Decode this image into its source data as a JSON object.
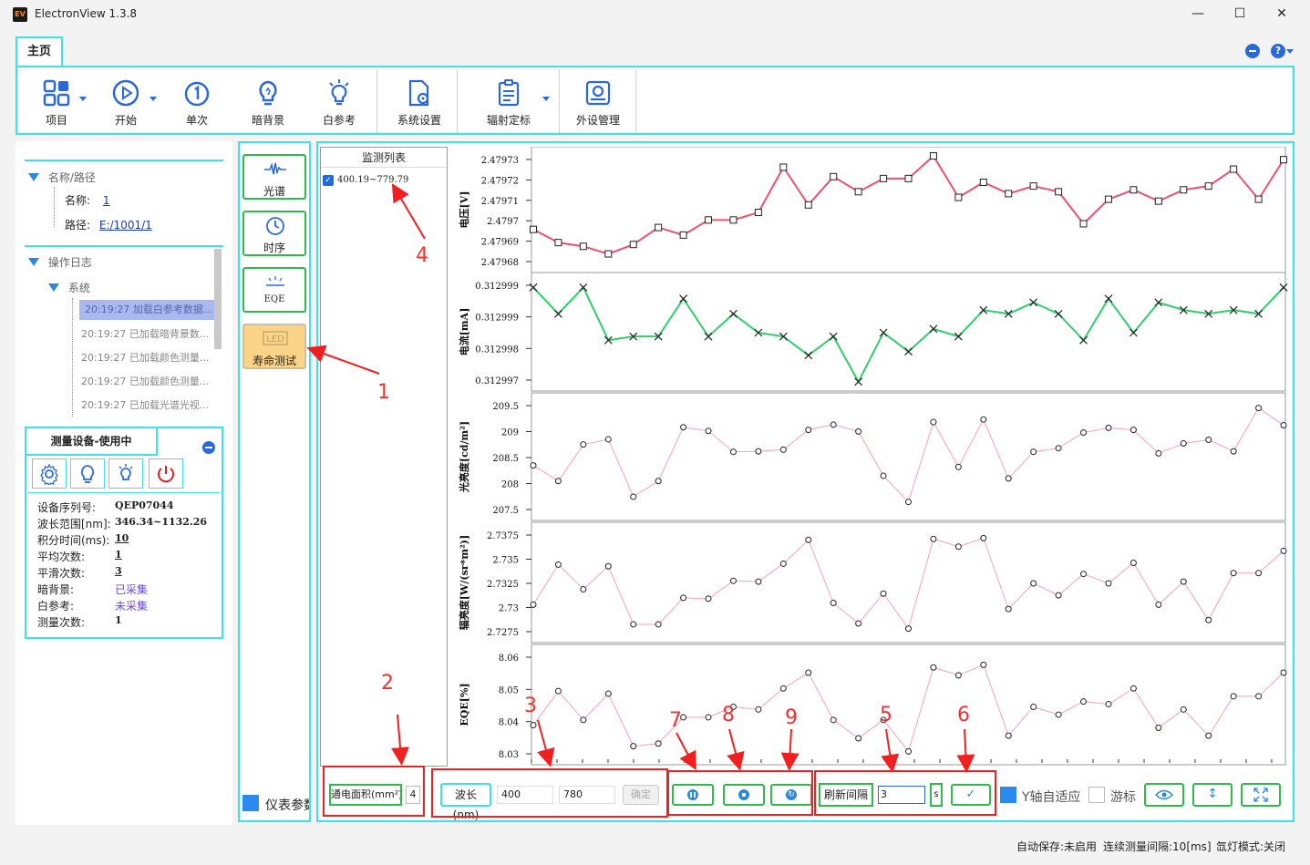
{
  "window": {
    "title": "ElectronView 1.3.8",
    "icon": "EV"
  },
  "ribbon": {
    "tab": "主页",
    "buttons": [
      {
        "label": "项目",
        "icon": "project-icon"
      },
      {
        "label": "开始",
        "icon": "play-icon"
      },
      {
        "label": "单次",
        "icon": "single-icon"
      },
      {
        "label": "暗背景",
        "icon": "bulb-dark-icon"
      },
      {
        "label": "白参考",
        "icon": "bulb-white-icon"
      },
      {
        "label": "系统设置",
        "icon": "settings-doc-icon"
      },
      {
        "label": "辐射定标",
        "icon": "calibration-icon"
      },
      {
        "label": "外设管理",
        "icon": "peripheral-icon"
      }
    ]
  },
  "tree1": {
    "header": "名称/路径",
    "name_label": "名称:",
    "name_value": "1",
    "path_label": "路径:",
    "path_value": "E:/1001/1"
  },
  "log": {
    "header": "操作日志",
    "group": "系统",
    "items": [
      "20:19:27 加载白参考数据...",
      "20:19:27 已加载暗背景数...",
      "20:19:27 已加载颜色测量...",
      "20:19:27 已加载颜色测量...",
      "20:19:27 已加载光谱光视..."
    ]
  },
  "device": {
    "title": "测量设备-使用中",
    "rows": [
      {
        "k": "设备序列号:",
        "v": "QEP07044"
      },
      {
        "k": "波长范围[nm]:",
        "v": "346.34~1132.26"
      },
      {
        "k": "积分时间(ms):",
        "v": "10"
      },
      {
        "k": "平均次数:",
        "v": "1"
      },
      {
        "k": "平滑次数:",
        "v": "3"
      },
      {
        "k": "暗背景:",
        "v": "已采集"
      },
      {
        "k": "白参考:",
        "v": "未采集"
      },
      {
        "k": "测量次数:",
        "v": "1"
      }
    ]
  },
  "modes": [
    "光谱",
    "时序",
    "EQE",
    "寿命测试"
  ],
  "meter_params": "仪表参数",
  "monitor": {
    "header": "监测列表",
    "item": "400.19~779.79"
  },
  "annotations": [
    "1",
    "2",
    "3",
    "4",
    "5",
    "6",
    "7",
    "8",
    "9"
  ],
  "bottom": {
    "area_label": "通电面积(mm²)",
    "area_value": "4",
    "wl_label": "波长(nm)",
    "wl_from": "400",
    "wl_to": "780",
    "confirm": "确定",
    "refresh_label": "刷新间隔",
    "refresh_value": "3",
    "refresh_unit": "s",
    "yauto": "Y轴自适应",
    "cursor": "游标"
  },
  "status": {
    "autosave": "自动保存:未启用",
    "interval": "连续测量间隔:10[ms]",
    "lamp": "氙灯模式:关闭"
  },
  "colors": {
    "cyan": "#3fe0e8",
    "green": "#2dbb4a",
    "red": "#f23030",
    "blue": "#2a8ad8"
  },
  "chart_data": [
    {
      "type": "line",
      "ylabel": "电压[V]",
      "yticks": [
        "2.47973",
        "2.47972",
        "2.47971",
        "2.4797",
        "2.47969",
        "2.47968"
      ],
      "ylim": [
        2.479675,
        2.479735
      ],
      "values": [
        2.479695,
        2.479688,
        2.479686,
        2.479682,
        2.479687,
        2.479696,
        2.479692,
        2.4797,
        2.4797,
        2.479704,
        2.479728,
        2.479708,
        2.479723,
        2.479715,
        2.479722,
        2.479722,
        2.479734,
        2.479712,
        2.47972,
        2.479714,
        2.479718,
        2.479715,
        2.479698,
        2.479711,
        2.479716,
        2.47971,
        2.479716,
        2.479718,
        2.479727,
        2.479711,
        2.479732
      ],
      "marker": "square",
      "color": "#f0506e"
    },
    {
      "type": "line",
      "ylabel": "电流[mA]",
      "yticks": [
        "0.312999",
        "0.312999",
        "0.312998",
        "0.312997"
      ],
      "ylim": [
        0.3129964,
        0.3129992
      ],
      "values": [
        0.312999,
        0.3129983,
        0.312999,
        0.3129976,
        0.3129977,
        0.3129977,
        0.3129987,
        0.3129977,
        0.3129983,
        0.3129978,
        0.3129977,
        0.3129972,
        0.3129977,
        0.3129965,
        0.3129978,
        0.3129973,
        0.3129979,
        0.3129977,
        0.3129984,
        0.3129983,
        0.3129986,
        0.3129983,
        0.3129976,
        0.3129987,
        0.3129978,
        0.3129986,
        0.3129984,
        0.3129983,
        0.3129984,
        0.3129983,
        0.312999
      ],
      "marker": "x",
      "color": "#2dcf6a"
    },
    {
      "type": "line",
      "ylabel": "光亮度[cd/m²]",
      "yticks": [
        "209.5",
        "209",
        "208.5",
        "208",
        "207.5"
      ],
      "ylim": [
        207.4,
        209.6
      ],
      "values": [
        208.35,
        208.05,
        208.75,
        208.85,
        207.75,
        208.05,
        209.08,
        209.01,
        208.61,
        208.62,
        208.65,
        209.03,
        209.13,
        209.0,
        208.15,
        207.65,
        209.18,
        208.32,
        209.23,
        208.1,
        208.61,
        208.68,
        208.98,
        209.07,
        209.03,
        208.58,
        208.77,
        208.84,
        208.62,
        209.45,
        209.12
      ],
      "marker": "circle",
      "color": "#f6a2b4"
    },
    {
      "type": "line",
      "ylabel": "辐亮度[W/(sr*m²)]",
      "yticks": [
        "2.7375",
        "2.735",
        "2.7325",
        "2.73",
        "2.7275"
      ],
      "ylim": [
        2.7262,
        2.7388
      ],
      "values": [
        2.73,
        2.7347,
        2.7318,
        2.7345,
        2.7277,
        2.7277,
        2.7308,
        2.7307,
        2.7328,
        2.7327,
        2.7348,
        2.7376,
        2.7302,
        2.7278,
        2.7313,
        2.7272,
        2.7377,
        2.7368,
        2.7378,
        2.7295,
        2.7325,
        2.7311,
        2.7336,
        2.7325,
        2.7349,
        2.73,
        2.7327,
        2.7282,
        2.7337,
        2.7337,
        2.7363
      ],
      "marker": "circle",
      "color": "#f6a2b4"
    },
    {
      "type": "line",
      "ylabel": "EQE[%]",
      "yticks": [
        "8.06",
        "8.05",
        "8.04",
        "8.03"
      ],
      "ylim": [
        8.025,
        8.066
      ],
      "values": [
        8.038,
        8.051,
        8.04,
        8.05,
        8.03,
        8.031,
        8.041,
        8.041,
        8.045,
        8.044,
        8.052,
        8.058,
        8.04,
        8.033,
        8.04,
        8.028,
        8.06,
        8.057,
        8.061,
        8.034,
        8.045,
        8.042,
        8.047,
        8.046,
        8.052,
        8.037,
        8.044,
        8.034,
        8.049,
        8.049,
        8.058
      ],
      "marker": "circle",
      "color": "#f6a2b4"
    }
  ]
}
